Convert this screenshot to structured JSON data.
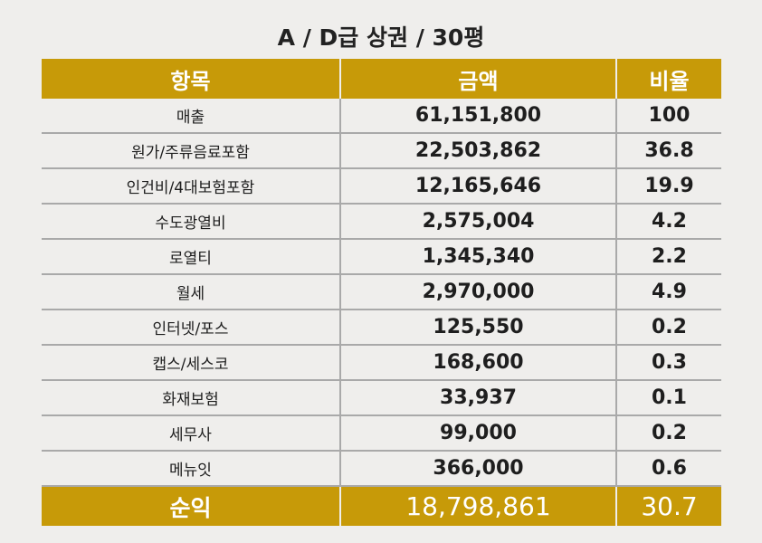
{
  "title": "A / D급 상권 / 30평",
  "header": {
    "item": "항목",
    "amount": "금액",
    "ratio": "비율"
  },
  "rows": [
    {
      "item": "매출",
      "amount": "61,151,800",
      "ratio": "100"
    },
    {
      "item": "원가/주류음료포함",
      "amount": "22,503,862",
      "ratio": "36.8"
    },
    {
      "item": "인건비/4대보험포함",
      "amount": "12,165,646",
      "ratio": "19.9"
    },
    {
      "item": "수도광열비",
      "amount": "2,575,004",
      "ratio": "4.2"
    },
    {
      "item": "로열티",
      "amount": "1,345,340",
      "ratio": "2.2"
    },
    {
      "item": "월세",
      "amount": "2,970,000",
      "ratio": "4.9"
    },
    {
      "item": "인터넷/포스",
      "amount": "125,550",
      "ratio": "0.2"
    },
    {
      "item": "캡스/세스코",
      "amount": "168,600",
      "ratio": "0.3"
    },
    {
      "item": "화재보험",
      "amount": "33,937",
      "ratio": "0.1"
    },
    {
      "item": "세무사",
      "amount": "99,000",
      "ratio": "0.2"
    },
    {
      "item": "메뉴잇",
      "amount": "366,000",
      "ratio": "0.6"
    }
  ],
  "total": {
    "item": "순익",
    "amount": "18,798,861",
    "ratio": "30.7"
  },
  "colors": {
    "accent": "#c79a08",
    "background": "#efeeec",
    "rule": "#a9a9a9"
  }
}
